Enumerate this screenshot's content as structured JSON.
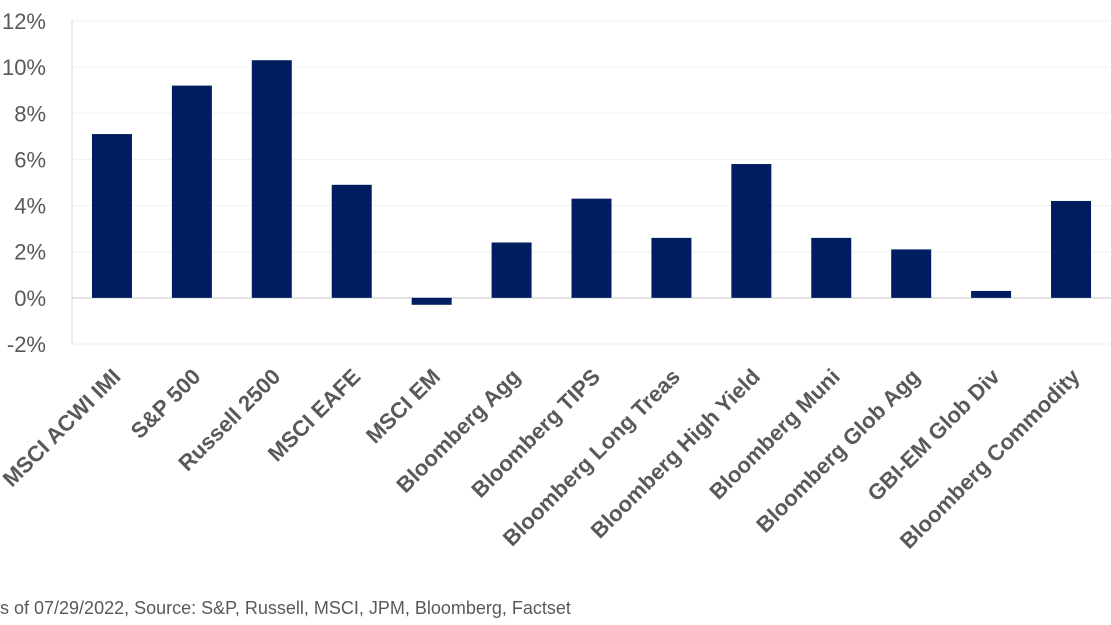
{
  "chart_data": {
    "type": "bar",
    "title": "",
    "xlabel": "",
    "ylabel": "",
    "categories": [
      "MSCI ACWI IMI",
      "S&P 500",
      "Russell 2500",
      "MSCI EAFE",
      "MSCI EM",
      "Bloomberg Agg",
      "Bloomberg TIPS",
      "Bloomberg Long Treas",
      "Bloomberg High Yield",
      "Bloomberg Muni",
      "Bloomberg Glob Agg",
      "GBI-EM Glob Div",
      "Bloomberg Commodity"
    ],
    "values": [
      7.1,
      9.2,
      10.3,
      4.9,
      -0.3,
      2.4,
      4.3,
      2.6,
      5.8,
      2.6,
      2.1,
      0.3,
      4.2
    ],
    "ylim": [
      -2,
      12
    ],
    "yticks": [
      12,
      10,
      8,
      6,
      4,
      2,
      0,
      -2
    ],
    "ytick_labels": [
      "12%",
      "10%",
      "8%",
      "6%",
      "4%",
      "2%",
      "0%",
      "-2%"
    ],
    "bar_color": "#001e5f",
    "grid": true,
    "legend": "none"
  },
  "footer": {
    "note": "s of 07/29/2022, Source: S&P, Russell, MSCI, JPM, Bloomberg, Factset"
  }
}
